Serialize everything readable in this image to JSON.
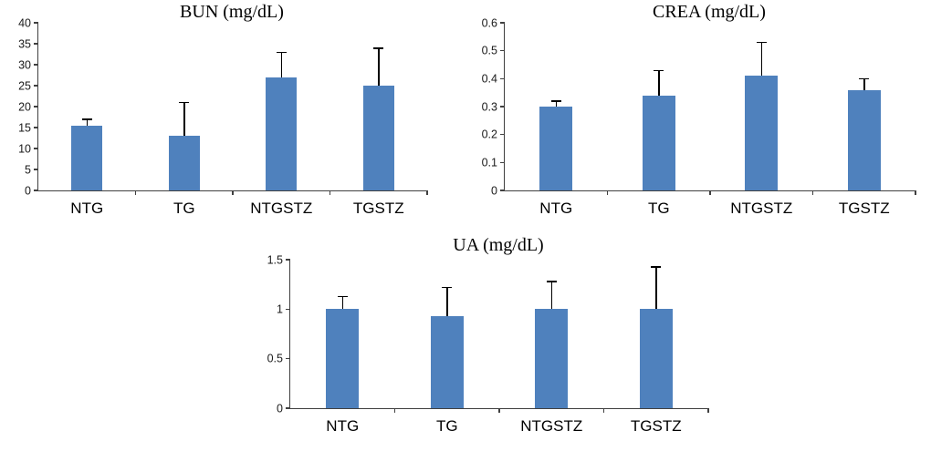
{
  "figure": {
    "background": "#ffffff",
    "bar_color": "#4f81bd",
    "error_bar_color": "#000000",
    "axis_color": "#404040"
  },
  "chart_data": [
    {
      "type": "bar",
      "title": "BUN (mg/dL)",
      "categories": [
        "NTG",
        "TG",
        "NTGSTZ",
        "TGSTZ"
      ],
      "values": [
        15.5,
        13,
        27,
        25
      ],
      "errors_plus": [
        1.5,
        8,
        6,
        9
      ],
      "xlabel": "",
      "ylabel": "",
      "ylim": [
        0,
        40
      ],
      "yticks": [
        0,
        5,
        10,
        15,
        20,
        25,
        30,
        35,
        40
      ],
      "grid": false,
      "legend": false
    },
    {
      "type": "bar",
      "title": "CREA (mg/dL)",
      "categories": [
        "NTG",
        "TG",
        "NTGSTZ",
        "TGSTZ"
      ],
      "values": [
        0.3,
        0.34,
        0.41,
        0.36
      ],
      "errors_plus": [
        0.02,
        0.09,
        0.12,
        0.04
      ],
      "xlabel": "",
      "ylabel": "",
      "ylim": [
        0,
        0.6
      ],
      "yticks": [
        0,
        0.1,
        0.2,
        0.3,
        0.4,
        0.5,
        0.6
      ],
      "grid": false,
      "legend": false
    },
    {
      "type": "bar",
      "title": "UA (mg/dL)",
      "categories": [
        "NTG",
        "TG",
        "NTGSTZ",
        "TGSTZ"
      ],
      "values": [
        1.0,
        0.93,
        1.0,
        1.0
      ],
      "errors_plus": [
        0.13,
        0.29,
        0.28,
        0.43
      ],
      "xlabel": "",
      "ylabel": "",
      "ylim": [
        0,
        1.5
      ],
      "yticks": [
        0,
        0.5,
        1,
        1.5
      ],
      "grid": false,
      "legend": false
    }
  ]
}
